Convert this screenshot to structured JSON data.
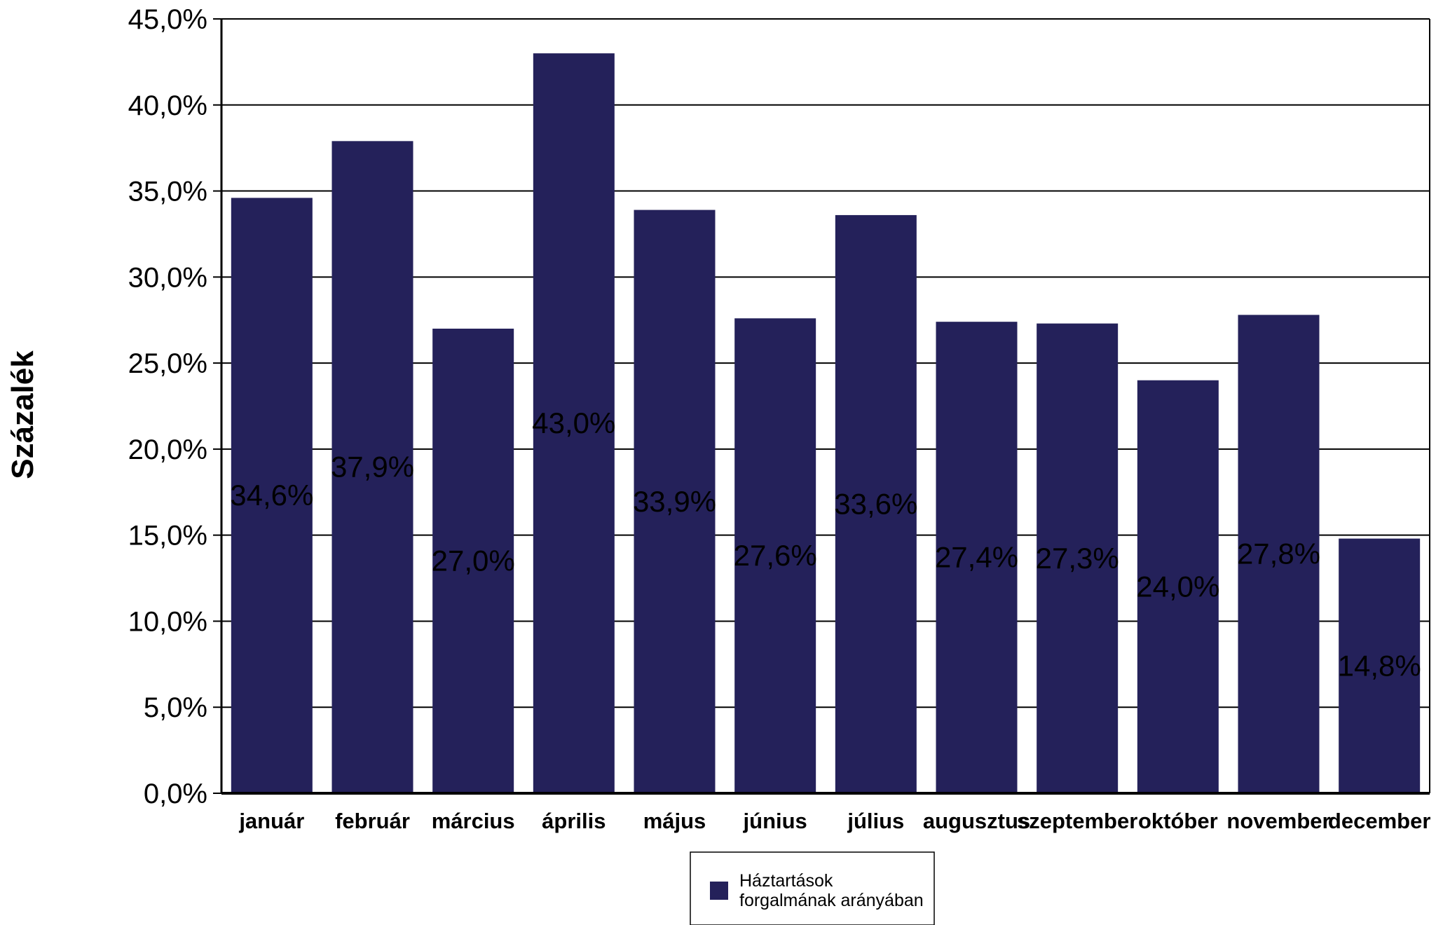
{
  "chart_data": {
    "type": "bar",
    "ylabel": "Százalék",
    "ylim": [
      0,
      45
    ],
    "ytick_step": 5,
    "ytick_labels": [
      "0,0%",
      "5,0%",
      "10,0%",
      "15,0%",
      "20,0%",
      "25,0%",
      "30,0%",
      "35,0%",
      "40,0%",
      "45,0%"
    ],
    "grid": true,
    "legend_position": "bottom",
    "categories": [
      "január",
      "február",
      "március",
      "április",
      "május",
      "június",
      "július",
      "augusztus",
      "szeptember",
      "október",
      "november",
      "december"
    ],
    "series": [
      {
        "name": "Háztartások forgalmának arányában",
        "legend_lines": [
          "Háztartások",
          "forgalmának arányában"
        ],
        "color": "#24215a",
        "values": [
          34.6,
          37.9,
          27.0,
          43.0,
          33.9,
          27.6,
          33.6,
          27.4,
          27.3,
          24.0,
          27.8,
          14.8
        ],
        "data_labels": [
          "34,6%",
          "37,9%",
          "27,0%",
          "43,0%",
          "33,9%",
          "27,6%",
          "33,6%",
          "27,4%",
          "27,3%",
          "24,0%",
          "27,8%",
          "14,8%"
        ]
      }
    ]
  }
}
